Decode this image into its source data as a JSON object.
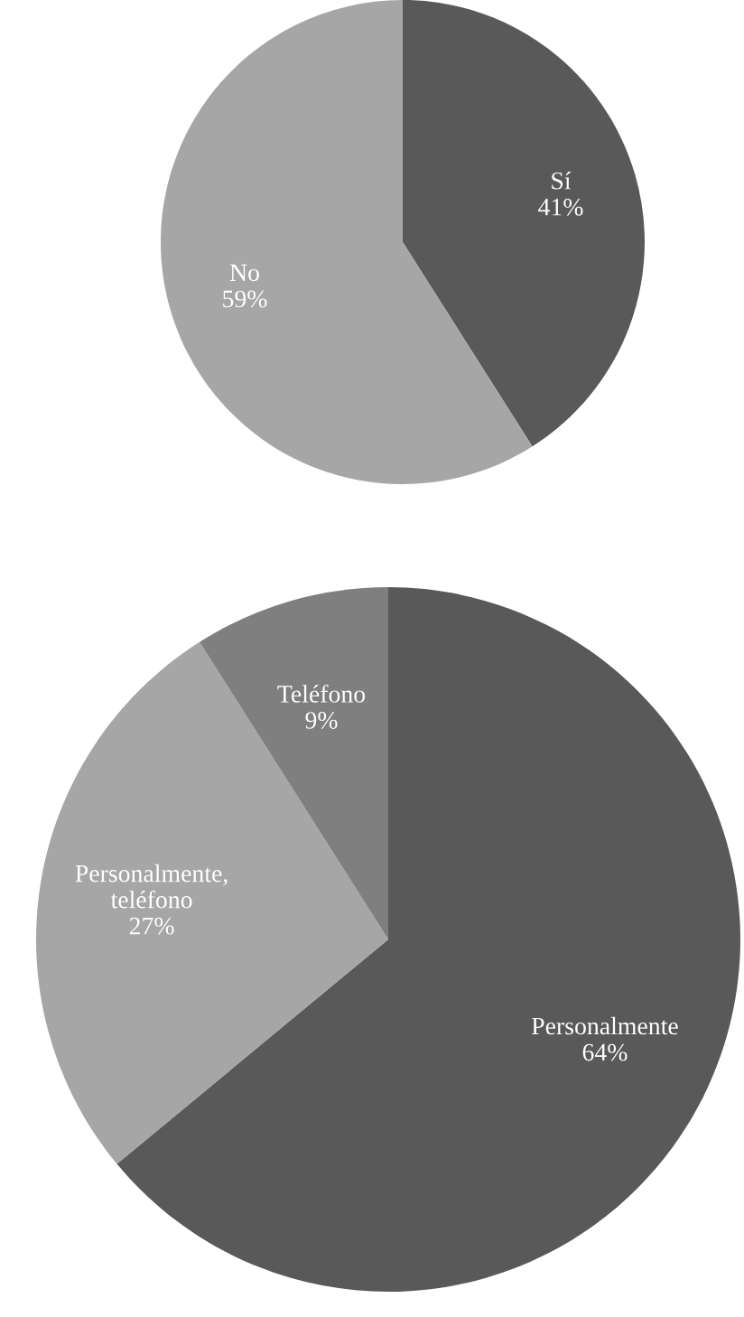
{
  "chart_data": [
    {
      "type": "pie",
      "categories": [
        "Sí",
        "No"
      ],
      "values": [
        41,
        59
      ],
      "colors": [
        "#595959",
        "#a6a6a6"
      ],
      "value_labels": [
        "41%",
        "59%"
      ]
    },
    {
      "type": "pie",
      "categories": [
        "Personalmente",
        "Personalmente, teléfono",
        "Teléfono"
      ],
      "values": [
        64,
        27,
        9
      ],
      "colors": [
        "#595959",
        "#a6a6a6",
        "#7f7f7f"
      ],
      "value_labels": [
        "64%",
        "27%",
        "9%"
      ]
    }
  ]
}
